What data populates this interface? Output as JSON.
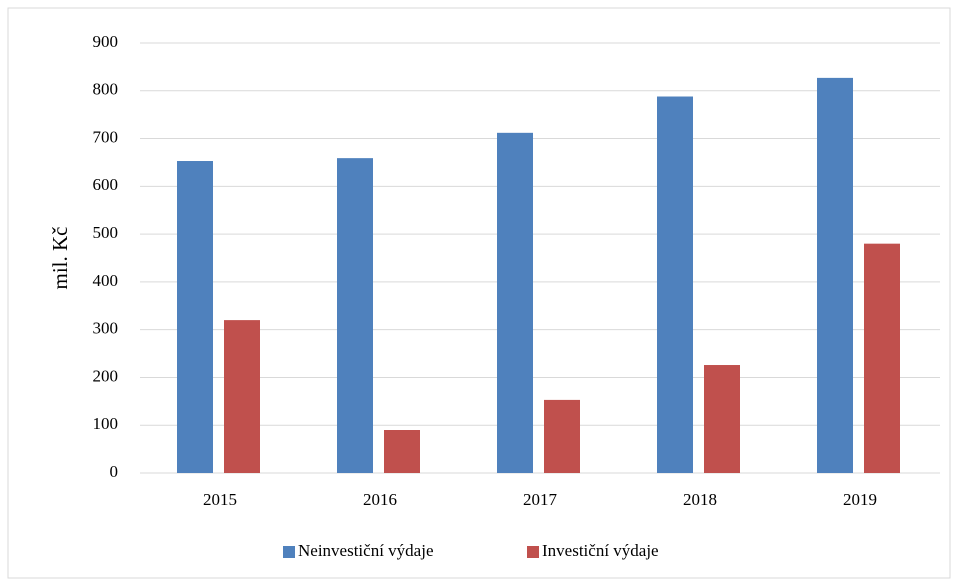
{
  "chart_data": {
    "type": "bar",
    "y_label": "mil. Kč",
    "categories": [
      "2015",
      "2016",
      "2017",
      "2018",
      "2019"
    ],
    "series": [
      {
        "name": "Neinvestiční výdaje",
        "color": "#4f81bd",
        "values": [
          653,
          659,
          712,
          788,
          827
        ]
      },
      {
        "name": "Investiční výdaje",
        "color": "#c0504d",
        "values": [
          320,
          90,
          153,
          226,
          480
        ]
      }
    ],
    "ylim": [
      0,
      900
    ],
    "yticks": [
      0,
      100,
      200,
      300,
      400,
      500,
      600,
      700,
      800,
      900
    ],
    "grid": true,
    "legend": "bottom"
  }
}
